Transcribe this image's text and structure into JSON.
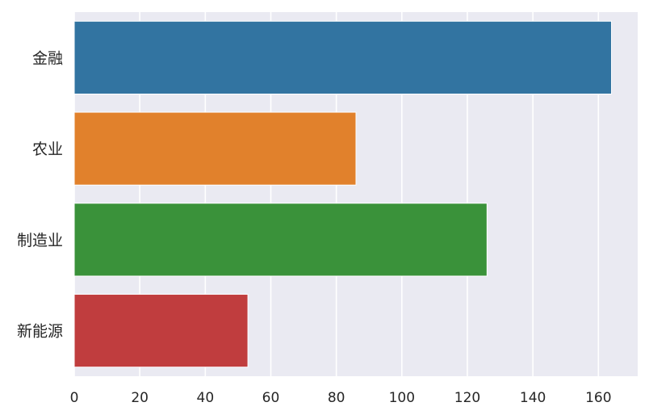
{
  "chart_data": {
    "type": "bar",
    "orientation": "horizontal",
    "categories": [
      "金融",
      "农业",
      "制造业",
      "新能源"
    ],
    "values": [
      164,
      86,
      126,
      53
    ],
    "colors": [
      "#3274a1",
      "#e1812c",
      "#3a923a",
      "#c03d3e"
    ],
    "title": "",
    "xlabel": "",
    "ylabel": "",
    "xlim": [
      0,
      172
    ],
    "xticks": [
      0,
      20,
      40,
      60,
      80,
      100,
      120,
      140,
      160
    ],
    "grid": true,
    "background": "#eaeaf2",
    "grid_color": "#ffffff"
  }
}
